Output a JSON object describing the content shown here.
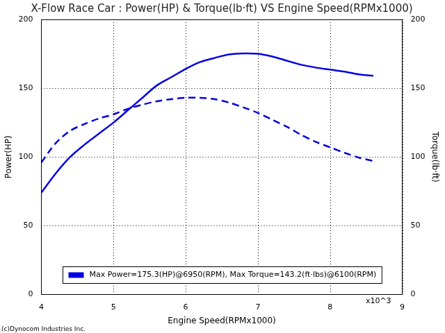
{
  "chart_data": {
    "type": "line",
    "title": "X-Flow Race Car : Power(HP) & Torque(lb·ft) VS Engine Speed(RPMx1000)",
    "x_label": "Engine Speed(RPMx1000)",
    "y_label": "Power(HP)",
    "y2_label": "Torque(lb·ft)",
    "annotations": [
      "x10^3",
      "(c)Dynocom Industries Inc."
    ],
    "x": [
      4.0,
      4.2,
      4.4,
      4.6,
      4.8,
      5.0,
      5.2,
      5.4,
      5.6,
      5.8,
      6.0,
      6.2,
      6.4,
      6.6,
      6.8,
      7.0,
      7.2,
      7.4,
      7.6,
      7.8,
      8.0,
      8.2,
      8.4,
      8.6
    ],
    "series": [
      {
        "name": "Max Power=175.3(HP)@6950(RPM), Max Torque=143.2(ft·lbs)@6100(RPM)",
        "color": "#0000e0",
        "line_style": "solid",
        "values": [
          74,
          88,
          100,
          109,
          117,
          125,
          134,
          143,
          152,
          158,
          164,
          169,
          172,
          174.5,
          175.3,
          175,
          173,
          170,
          167,
          165,
          163.5,
          162,
          160,
          159
        ]
      },
      {
        "color": "#0000e0",
        "line_style": "dashed",
        "axis": "y2",
        "values": [
          96,
          110,
          119,
          124,
          128,
          131,
          135,
          138,
          140.5,
          142,
          143,
          143,
          142,
          139.5,
          136,
          132,
          127,
          122,
          116,
          111,
          107,
          103,
          99.5,
          97
        ]
      }
    ],
    "xlim": [
      4,
      9
    ],
    "xticks": [
      4,
      5,
      6,
      7,
      8,
      9
    ],
    "ylim": [
      0,
      200
    ],
    "yticks": [
      0,
      50,
      100,
      150,
      200
    ],
    "y2lim": [
      0,
      200
    ],
    "y2ticks": [
      0,
      50,
      100,
      150,
      200
    ],
    "grid": true,
    "legend": "bottom"
  }
}
